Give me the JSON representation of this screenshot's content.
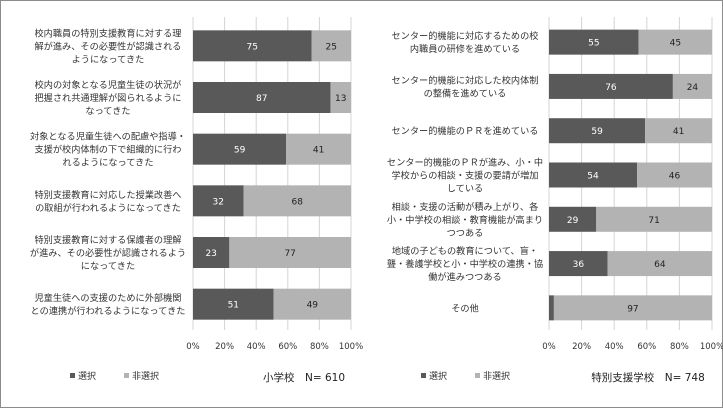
{
  "colors": {
    "selected": "#595959",
    "not_selected": "#b3b3b3",
    "selected_text": "#ffffff",
    "not_selected_text": "#222222",
    "grid": "#d4d4d4"
  },
  "chart_data": [
    {
      "type": "bar",
      "stacked": true,
      "orientation": "horizontal",
      "note": "小学校　N= 610",
      "categories": [
        "校内職員の特別支援教育に対する理|解が進み、その必要性が認識される|ようになってきた",
        "校内の対象となる児童生徒の状況が|把握され共通理解が図られるように|なってきた",
        "対象となる児童生徒への配慮や指導・|支援が校内体制の下で組織的に行わ|れるようになってきた",
        "特別支援教育に対応した授業改善へ|の取組が行われるようになってきた",
        "特別支援教育に対する保護者の理解|が進み、その必要性が認識されるよう|になってきた",
        "児童生徒への支援のために外部機関|との連携が行われるようになってきた"
      ],
      "series": [
        {
          "name": "選択",
          "values": [
            75,
            87,
            59,
            32,
            23,
            51
          ]
        },
        {
          "name": "非選択",
          "values": [
            25,
            13,
            41,
            68,
            77,
            49
          ]
        }
      ],
      "xlim": [
        0,
        100
      ],
      "xticks": [
        "0%",
        "20%",
        "40%",
        "60%",
        "80%",
        "100%"
      ],
      "legend_position": "bottom-left"
    },
    {
      "type": "bar",
      "stacked": true,
      "orientation": "horizontal",
      "note": "特別支援学校　N= 748",
      "categories": [
        "センター的機能に対応するための校|内職員の研修を進めている",
        "センター的機能に対応した校内体制|の整備を進めている",
        "センター的機能のＰＲを進めている",
        "センター的機能のＰＲが進み、小・中|学校からの相談・支援の要請が増加|している",
        "相談・支援の活動が積み上がり、各|小・中学校の相談・教育機能が高まり|つつある",
        "地域の子どもの教育について、盲・|聾・養護学校と小・中学校の連携・協|働が進みつつある",
        "その他"
      ],
      "series": [
        {
          "name": "選択",
          "values": [
            55,
            76,
            59,
            54,
            29,
            36,
            3
          ]
        },
        {
          "name": "非選択",
          "values": [
            45,
            24,
            41,
            46,
            71,
            64,
            97
          ]
        }
      ],
      "xlim": [
        0,
        100
      ],
      "xticks": [
        "0%",
        "20%",
        "40%",
        "60%",
        "80%",
        "100%"
      ],
      "legend_position": "bottom-left"
    }
  ]
}
